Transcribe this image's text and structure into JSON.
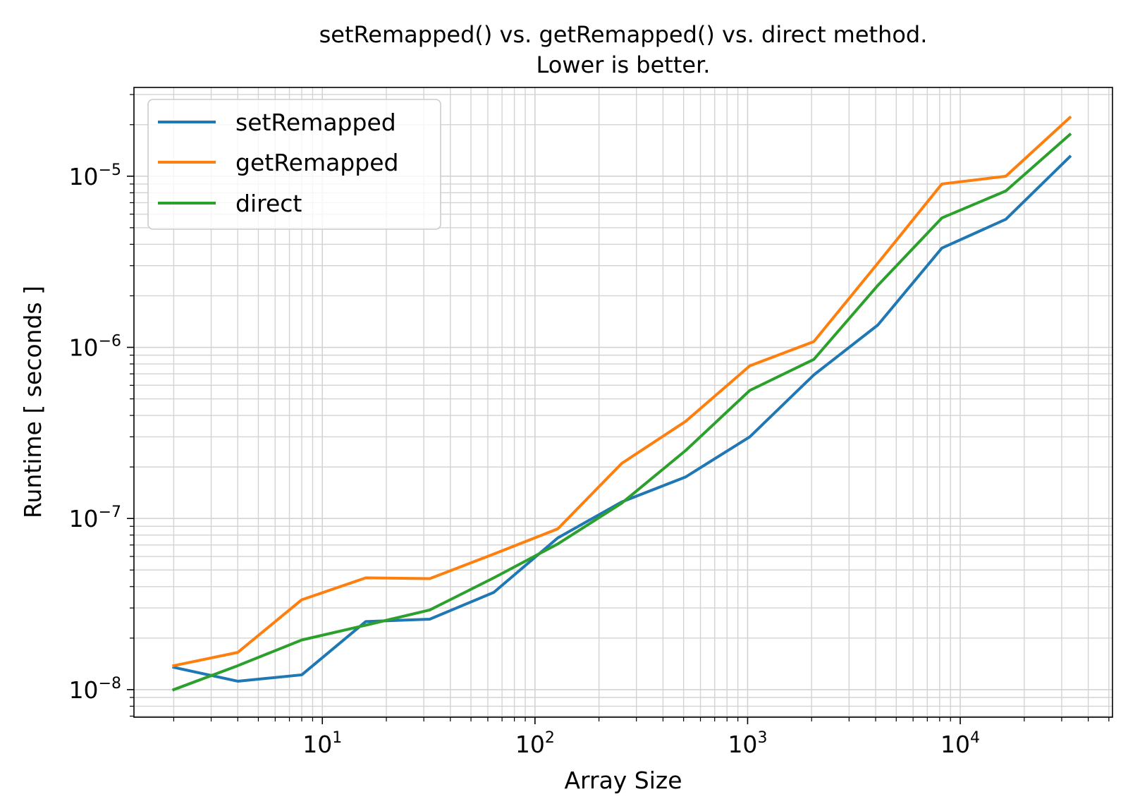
{
  "chart_data": {
    "type": "line",
    "title": "setRemapped() vs. getRemapped() vs. direct method.",
    "subtitle": "Lower is better.",
    "xlabel": "Array Size",
    "ylabel": "Runtime [ seconds ]",
    "xscale": "log",
    "yscale": "log",
    "xlim": [
      1.3,
      52000
    ],
    "ylim": [
      6.9e-09,
      3.3e-05
    ],
    "grid": true,
    "grid_minor": true,
    "legend_position": "top-left",
    "x_ticks": [
      {
        "value": 10,
        "base": "10",
        "exp": "1"
      },
      {
        "value": 100,
        "base": "10",
        "exp": "2"
      },
      {
        "value": 1000,
        "base": "10",
        "exp": "3"
      },
      {
        "value": 10000,
        "base": "10",
        "exp": "4"
      }
    ],
    "y_ticks": [
      {
        "value": 1e-08,
        "base": "10",
        "exp": "−8"
      },
      {
        "value": 1e-07,
        "base": "10",
        "exp": "−7"
      },
      {
        "value": 1e-06,
        "base": "10",
        "exp": "−6"
      },
      {
        "value": 1e-05,
        "base": "10",
        "exp": "−5"
      }
    ],
    "x": [
      2,
      4,
      8,
      16,
      32,
      64,
      128,
      256,
      512,
      1024,
      2048,
      4096,
      8192,
      16384,
      32768
    ],
    "series": [
      {
        "name": "setRemapped",
        "color": "#1f77b4",
        "values": [
          1.35e-08,
          1.12e-08,
          1.22e-08,
          2.5e-08,
          2.58e-08,
          3.7e-08,
          7.7e-08,
          1.25e-07,
          1.75e-07,
          3e-07,
          6.9e-07,
          1.35e-06,
          3.8e-06,
          5.6e-06,
          1.3e-05
        ]
      },
      {
        "name": "getRemapped",
        "color": "#ff7f0e",
        "values": [
          1.38e-08,
          1.65e-08,
          3.35e-08,
          4.5e-08,
          4.45e-08,
          6.2e-08,
          8.7e-08,
          2.1e-07,
          3.7e-07,
          7.8e-07,
          1.08e-06,
          3.1e-06,
          9e-06,
          1e-05,
          2.2e-05
        ]
      },
      {
        "name": "direct",
        "color": "#2ca02c",
        "values": [
          1e-08,
          1.38e-08,
          1.95e-08,
          2.38e-08,
          2.92e-08,
          4.5e-08,
          7.1e-08,
          1.23e-07,
          2.5e-07,
          5.6e-07,
          8.5e-07,
          2.3e-06,
          5.7e-06,
          8.2e-06,
          1.75e-05
        ]
      }
    ]
  }
}
